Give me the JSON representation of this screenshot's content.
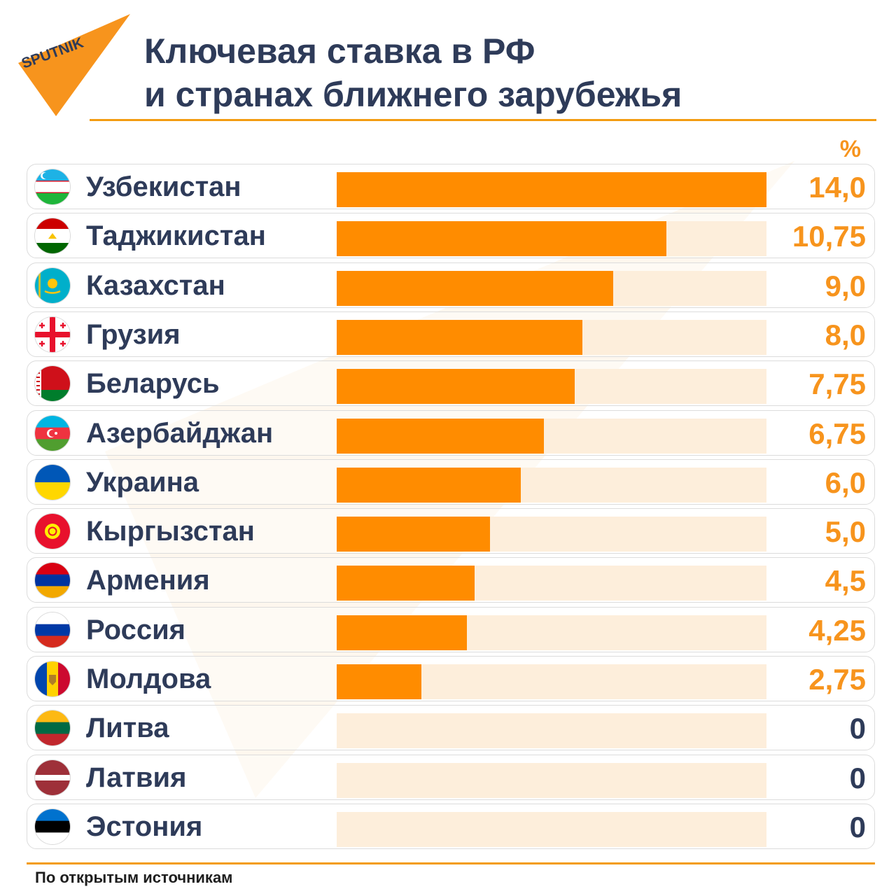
{
  "brand": {
    "logo_text": "SPUTNIK",
    "color": "#f7941d"
  },
  "header": {
    "title_line1": "Ключевая ставка в РФ",
    "title_line2": "и странах ближнего зарубежья"
  },
  "unit_label": "%",
  "chart_data": {
    "type": "bar",
    "orientation": "horizontal",
    "title": "Ключевая ставка в РФ и странах ближнего зарубежья",
    "unit": "%",
    "xlim": [
      0,
      14
    ],
    "categories": [
      "Узбекистан",
      "Таджикистан",
      "Казахстан",
      "Грузия",
      "Беларусь",
      "Азербайджан",
      "Украина",
      "Кыргызстан",
      "Армения",
      "Россия",
      "Молдова",
      "Литва",
      "Латвия",
      "Эстония"
    ],
    "values": [
      14.0,
      10.75,
      9.0,
      8.0,
      7.75,
      6.75,
      6.0,
      5.0,
      4.5,
      4.25,
      2.75,
      0,
      0,
      0
    ],
    "value_labels": [
      "14,0",
      "10,75",
      "9,0",
      "8,0",
      "7,75",
      "6,75",
      "6,0",
      "5,0",
      "4,5",
      "4,25",
      "2,75",
      "0",
      "0",
      "0"
    ],
    "flags": [
      "uzbekistan-flag-icon",
      "tajikistan-flag-icon",
      "kazakhstan-flag-icon",
      "georgia-flag-icon",
      "belarus-flag-icon",
      "azerbaijan-flag-icon",
      "ukraine-flag-icon",
      "kyrgyzstan-flag-icon",
      "armenia-flag-icon",
      "russia-flag-icon",
      "moldova-flag-icon",
      "lithuania-flag-icon",
      "latvia-flag-icon",
      "estonia-flag-icon"
    ],
    "bar_color": "#ff8c00",
    "track_color": "#fdeedb",
    "value_color": "#f7941d",
    "zero_value_color": "#2e3b59"
  },
  "footer": {
    "source": "По открытым источникам"
  }
}
